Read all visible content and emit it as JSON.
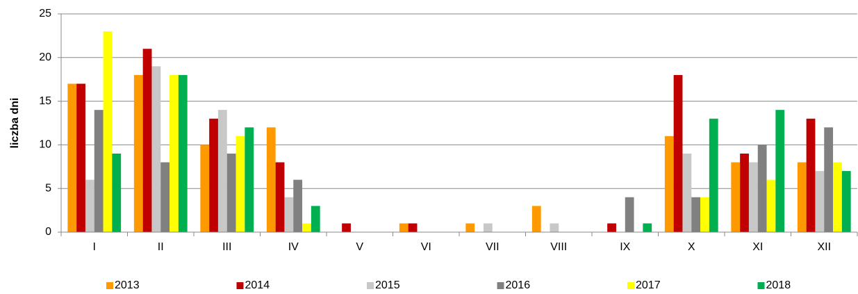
{
  "chart_data": {
    "type": "bar",
    "y_label": "liczba dni",
    "categories": [
      "I",
      "II",
      "III",
      "IV",
      "V",
      "VI",
      "VII",
      "VIII",
      "IX",
      "X",
      "XI",
      "XII"
    ],
    "series": [
      {
        "name": "2013",
        "color": "#ff9900",
        "values": [
          17,
          18,
          10,
          12,
          0,
          1,
          1,
          3,
          0,
          11,
          8,
          8
        ]
      },
      {
        "name": "2014",
        "color": "#c00000",
        "values": [
          17,
          21,
          13,
          8,
          1,
          1,
          0,
          0,
          1,
          18,
          9,
          13
        ]
      },
      {
        "name": "2015",
        "color": "#c8c8c8",
        "values": [
          6,
          19,
          14,
          4,
          0,
          0,
          1,
          1,
          0,
          9,
          8,
          7
        ]
      },
      {
        "name": "2016",
        "color": "#808080",
        "values": [
          14,
          8,
          9,
          6,
          0,
          0,
          0,
          0,
          4,
          4,
          10,
          12
        ]
      },
      {
        "name": "2017",
        "color": "#ffff00",
        "values": [
          23,
          18,
          11,
          1,
          0,
          0,
          0,
          0,
          0,
          4,
          6,
          8
        ]
      },
      {
        "name": "2018",
        "color": "#00b050",
        "values": [
          9,
          18,
          12,
          3,
          0,
          0,
          0,
          0,
          1,
          13,
          14,
          7
        ]
      }
    ],
    "ylim": [
      0,
      25
    ],
    "yticks": [
      0,
      5,
      10,
      15,
      20,
      25
    ],
    "grid": true,
    "legend": "bottom"
  }
}
